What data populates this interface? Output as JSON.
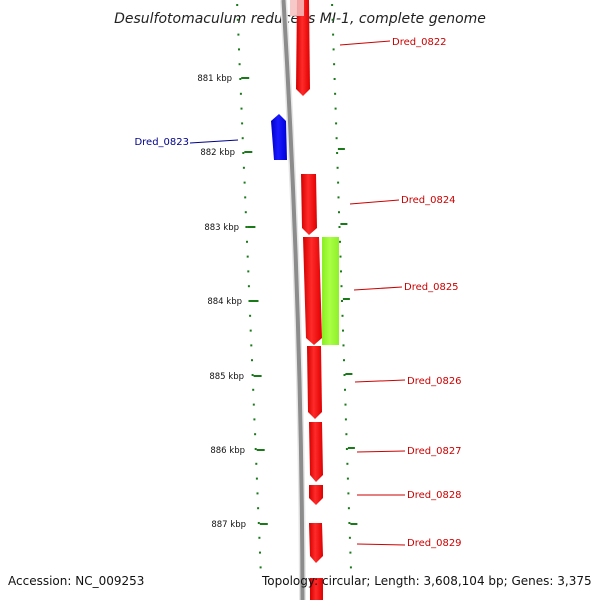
{
  "title": "Desulfotomaculum reducens MI-1, complete genome",
  "accession": "Accession: NC_009253",
  "topology": "Topology: circular; Length: 3,608,104 bp; Genes: 3,375",
  "colors": {
    "backbone": "#8c8c8c",
    "forward_gene": "#ff0000",
    "reverse_gene": "#0000ff",
    "other_feature": "#99ff33",
    "tick": "#1a7a1a",
    "forward_label": "#cc0000",
    "reverse_label": "#00008b"
  },
  "kbp_labels": [
    "881 kbp",
    "882 kbp",
    "883 kbp",
    "884 kbp",
    "885 kbp",
    "886 kbp",
    "887 kbp"
  ],
  "genes": [
    {
      "name": "Dred_0822",
      "strand": "forward",
      "color": "forward"
    },
    {
      "name": "Dred_0823",
      "strand": "reverse",
      "color": "reverse"
    },
    {
      "name": "Dred_0824",
      "strand": "forward",
      "color": "forward"
    },
    {
      "name": "Dred_0825",
      "strand": "forward",
      "color": "forward"
    },
    {
      "name": "Dred_0826",
      "strand": "forward",
      "color": "forward"
    },
    {
      "name": "Dred_0827",
      "strand": "forward",
      "color": "forward"
    },
    {
      "name": "Dred_0828",
      "strand": "forward",
      "color": "forward"
    },
    {
      "name": "Dred_0829",
      "strand": "forward",
      "color": "forward"
    }
  ],
  "features": [
    {
      "type": "other",
      "color": "other_feature"
    }
  ]
}
